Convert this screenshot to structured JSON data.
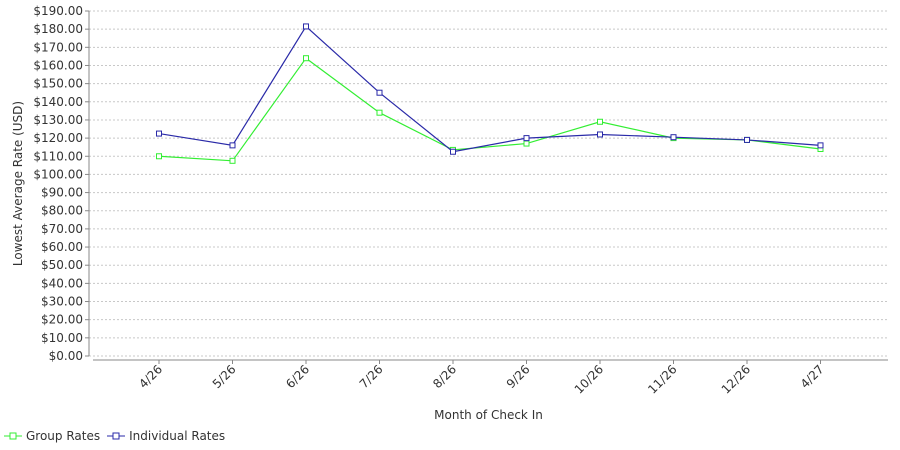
{
  "chart_data": {
    "type": "line",
    "xlabel": "Month of Check In",
    "ylabel": "Lowest Average Rate (USD)",
    "categories": [
      "4/26",
      "5/26",
      "6/26",
      "7/26",
      "8/26",
      "9/26",
      "10/26",
      "11/26",
      "12/26",
      "4/27"
    ],
    "ylim": [
      0,
      190
    ],
    "ytick_step": 10,
    "ytick_labels": [
      "$0.00",
      "$10.00",
      "$20.00",
      "$30.00",
      "$40.00",
      "$50.00",
      "$60.00",
      "$70.00",
      "$80.00",
      "$90.00",
      "$100.00",
      "$110.00",
      "$120.00",
      "$130.00",
      "$140.00",
      "$150.00",
      "$160.00",
      "$170.00",
      "$180.00",
      "$190.00"
    ],
    "grid": true,
    "legend_position": "bottom-left",
    "series": [
      {
        "name": "Group Rates",
        "color": "#33ee33",
        "marker": "square",
        "values": [
          110,
          107.5,
          164,
          134,
          113.5,
          117,
          129,
          120,
          119,
          114
        ]
      },
      {
        "name": "Individual Rates",
        "color": "#2a2aa8",
        "marker": "square",
        "values": [
          122.5,
          116,
          181.5,
          145,
          112.5,
          120,
          122,
          120.5,
          119,
          116
        ]
      }
    ]
  }
}
